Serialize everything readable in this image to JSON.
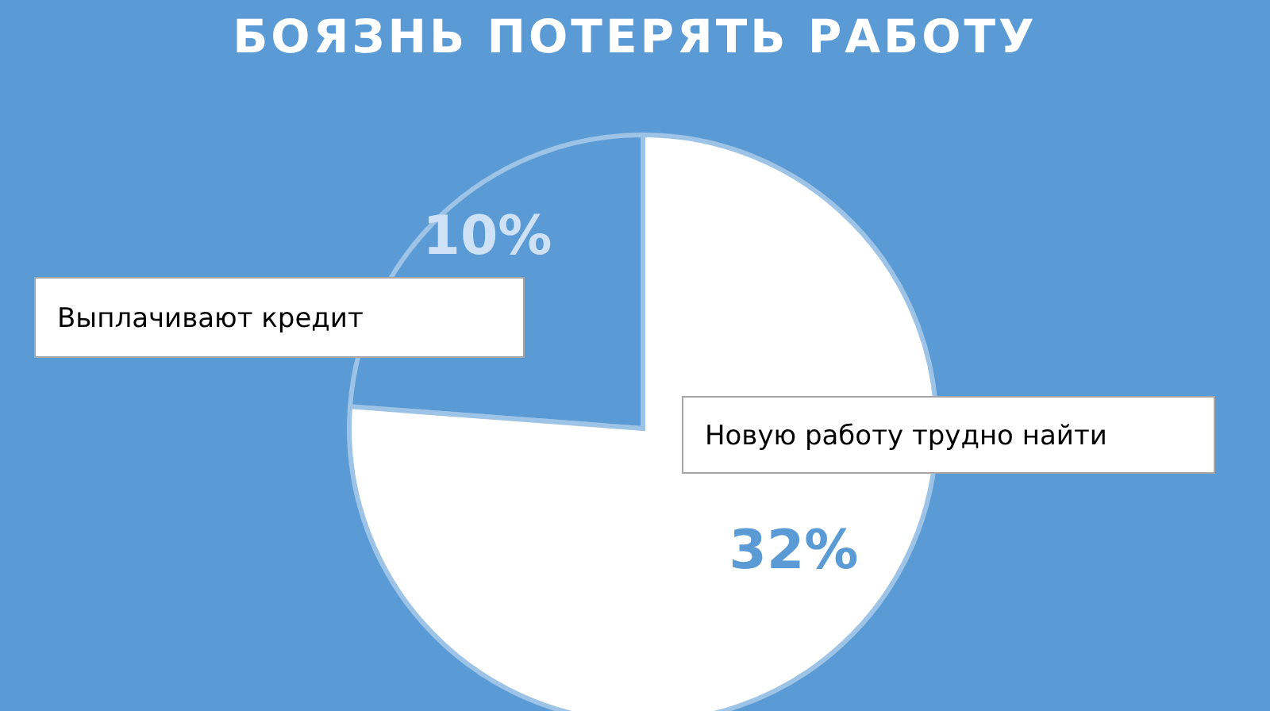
{
  "chart_data": {
    "type": "pie",
    "title": "БОЯЗНЬ ПОТЕРЯТЬ РАБОТУ",
    "categories": [
      "Выплачивают кредит",
      "Новую работу трудно найти"
    ],
    "values": [
      10,
      32
    ],
    "value_labels": [
      "10%",
      "32%"
    ],
    "colors": [
      "#5b9bd5",
      "#ffffff"
    ]
  }
}
